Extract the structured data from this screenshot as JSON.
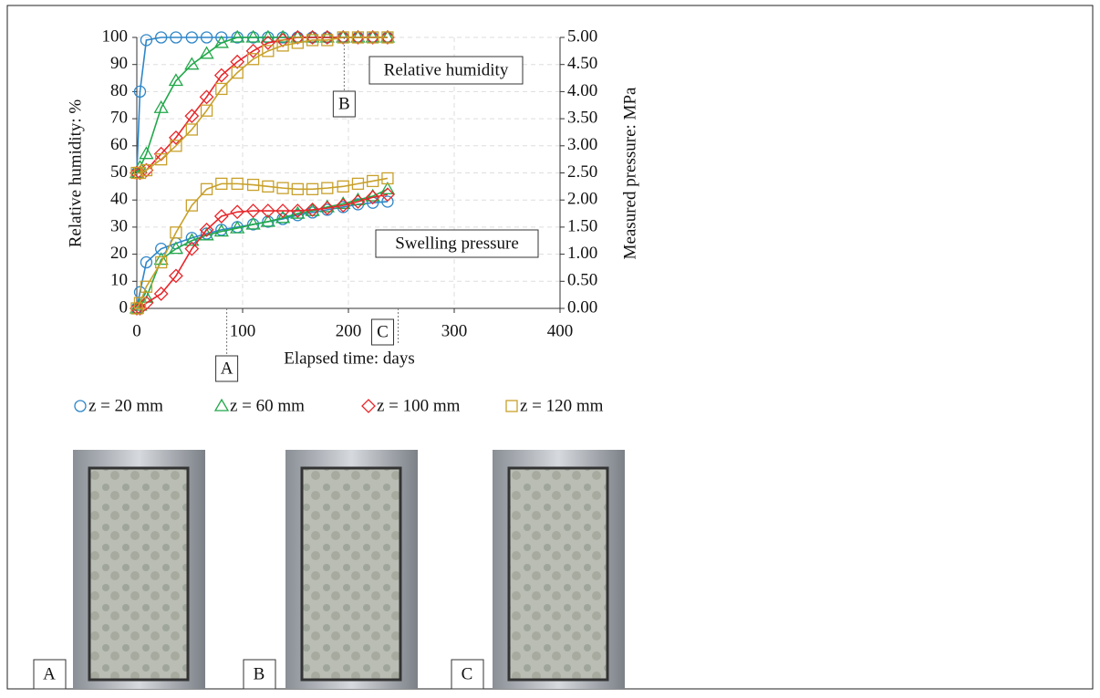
{
  "chart_data": {
    "type": "line",
    "y_label": "Relative humidity: %",
    "y2_label": "Measured pressure: MPa",
    "x_label": "Elapsed time: days",
    "xlim": [
      0,
      400
    ],
    "xticks": [
      0,
      100,
      200,
      300,
      400
    ],
    "ylim": [
      0,
      100
    ],
    "yticks": [
      0,
      10,
      20,
      30,
      40,
      50,
      60,
      70,
      80,
      90,
      100
    ],
    "y2lim": [
      0,
      5
    ],
    "y2ticks": [
      {
        "value": 0,
        "label": "0.00"
      },
      {
        "value": 0.5,
        "label": "0.50"
      },
      {
        "value": 1,
        "label": "1.00"
      },
      {
        "value": 1.5,
        "label": "1.50"
      },
      {
        "value": 2,
        "label": "2.00"
      },
      {
        "value": 2.5,
        "label": "2.50"
      },
      {
        "value": 3,
        "label": "3.00"
      },
      {
        "value": 3.5,
        "label": "3.50"
      },
      {
        "value": 4,
        "label": "4.00"
      },
      {
        "value": 4.5,
        "label": "4.50"
      },
      {
        "value": 5,
        "label": "5.00"
      }
    ],
    "grid": true,
    "x": [
      0,
      3,
      9,
      23,
      37,
      52,
      66,
      80,
      95,
      110,
      124,
      138,
      152,
      166,
      180,
      195,
      209,
      223,
      237
    ],
    "series": [
      {
        "name": "z = 20 mm",
        "color": "#2e86c8",
        "marker": "circle",
        "values": [
          50,
          80,
          99,
          100,
          100,
          100,
          100,
          100,
          100,
          100,
          100,
          100,
          100,
          100,
          100,
          100,
          100,
          100,
          100
        ]
      },
      {
        "name": "z = 60 mm",
        "color": "#22a84a",
        "marker": "triangle",
        "values": [
          50,
          52,
          57,
          74,
          84,
          90,
          94,
          98,
          100,
          100,
          100,
          100,
          100,
          100,
          100,
          100,
          100,
          100,
          100
        ]
      },
      {
        "name": "z = 100 mm",
        "color": "#e8262a",
        "marker": "diamond",
        "values": [
          50,
          50,
          51,
          57,
          63,
          71,
          78,
          86,
          91,
          95,
          98,
          99,
          100,
          100,
          100,
          100,
          100,
          100,
          100
        ]
      },
      {
        "name": "z = 120 mm",
        "color": "#c8a02a",
        "marker": "square",
        "values": [
          50,
          50,
          51,
          55,
          60,
          66,
          73,
          81,
          87,
          92,
          95,
          97,
          98,
          99,
          99,
          100,
          100,
          100,
          100
        ]
      },
      {
        "axis": "y2",
        "color": "#2e86c8",
        "marker": "circle",
        "values": [
          0,
          0.3,
          0.85,
          1.1,
          1.2,
          1.3,
          1.38,
          1.45,
          1.5,
          1.55,
          1.6,
          1.65,
          1.72,
          1.77,
          1.82,
          1.87,
          1.92,
          1.95,
          1.97
        ]
      },
      {
        "axis": "y2",
        "color": "#22a84a",
        "marker": "triangle",
        "values": [
          0,
          0.05,
          0.2,
          0.9,
          1.1,
          1.25,
          1.35,
          1.42,
          1.48,
          1.55,
          1.6,
          1.67,
          1.75,
          1.8,
          1.87,
          1.93,
          2.0,
          2.07,
          2.2
        ]
      },
      {
        "axis": "y2",
        "color": "#e8262a",
        "marker": "diamond",
        "values": [
          0,
          0,
          0.1,
          0.27,
          0.6,
          1.1,
          1.45,
          1.7,
          1.78,
          1.8,
          1.8,
          1.8,
          1.8,
          1.82,
          1.85,
          1.9,
          1.97,
          2.05,
          2.1
        ]
      },
      {
        "axis": "y2",
        "color": "#c8a02a",
        "marker": "square",
        "values": [
          0,
          0.1,
          0.4,
          0.85,
          1.4,
          1.9,
          2.2,
          2.3,
          2.3,
          2.28,
          2.25,
          2.22,
          2.2,
          2.2,
          2.22,
          2.25,
          2.3,
          2.35,
          2.4
        ]
      }
    ],
    "annotations": [
      {
        "text": "Relative humidity"
      },
      {
        "text": "Swelling pressure"
      },
      {
        "text": "A",
        "x": 85
      },
      {
        "text": "B",
        "x": 196
      },
      {
        "text": "C",
        "x": 247
      }
    ]
  },
  "photo_labels": [
    "A",
    "B",
    "C"
  ]
}
